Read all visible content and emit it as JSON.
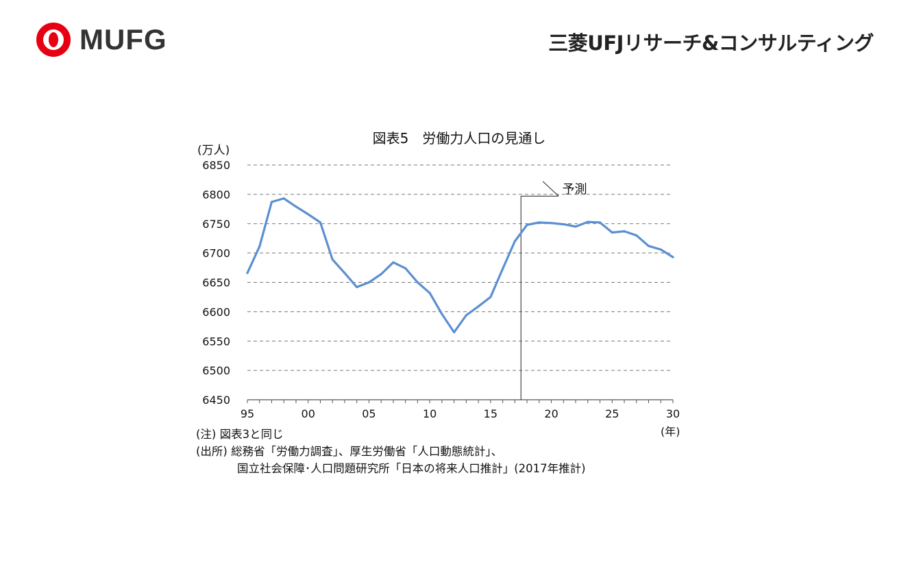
{
  "header": {
    "logo_text": "MUFG",
    "company_name": "三菱UFJリサーチ&コンサルティング",
    "brand_color": "#e60012"
  },
  "chart_data": {
    "type": "line",
    "title": "図表5　労働力人口の見通し",
    "ylabel": "(万人)",
    "xlabel": "(年)",
    "ylim": [
      6450,
      6850
    ],
    "yticks": [
      "6850",
      "6800",
      "6750",
      "6700",
      "6650",
      "6600",
      "6550",
      "6500",
      "6450"
    ],
    "xlim": [
      1995,
      2030
    ],
    "xticks": [
      {
        "year": 1995,
        "label": "95"
      },
      {
        "year": 2000,
        "label": "00"
      },
      {
        "year": 2005,
        "label": "05"
      },
      {
        "year": 2010,
        "label": "10"
      },
      {
        "year": 2015,
        "label": "15"
      },
      {
        "year": 2020,
        "label": "20"
      },
      {
        "year": 2025,
        "label": "25"
      },
      {
        "year": 2030,
        "label": "30"
      }
    ],
    "grid": true,
    "line_color": "#5b8fd0",
    "x": [
      1995,
      1996,
      1997,
      1998,
      1999,
      2000,
      2001,
      2002,
      2003,
      2004,
      2005,
      2006,
      2007,
      2008,
      2009,
      2010,
      2011,
      2012,
      2013,
      2014,
      2015,
      2016,
      2017,
      2018,
      2019,
      2020,
      2021,
      2022,
      2023,
      2024,
      2025,
      2026,
      2027,
      2028,
      2029,
      2030
    ],
    "series": [
      {
        "values": [
          6666,
          6711,
          6787,
          6793,
          6779,
          6766,
          6752,
          6689,
          6666,
          6642,
          6650,
          6664,
          6684,
          6674,
          6650,
          6632,
          6596,
          6565,
          6594,
          6609,
          6625,
          6673,
          6720,
          6748,
          6752,
          6751,
          6749,
          6745,
          6753,
          6752,
          6735,
          6737,
          6730,
          6712,
          6706,
          6693
        ]
      }
    ],
    "forecast_start": 2017.5,
    "annotation": "予測"
  },
  "notes": {
    "note": "(注) 図表3と同じ",
    "source_line1": "(出所) 総務省「労働力調査」、厚生労働省「人口動態統計」、",
    "source_line2": "国立社会保障･人口問題研究所「日本の将来人口推計」(2017年推計)"
  }
}
